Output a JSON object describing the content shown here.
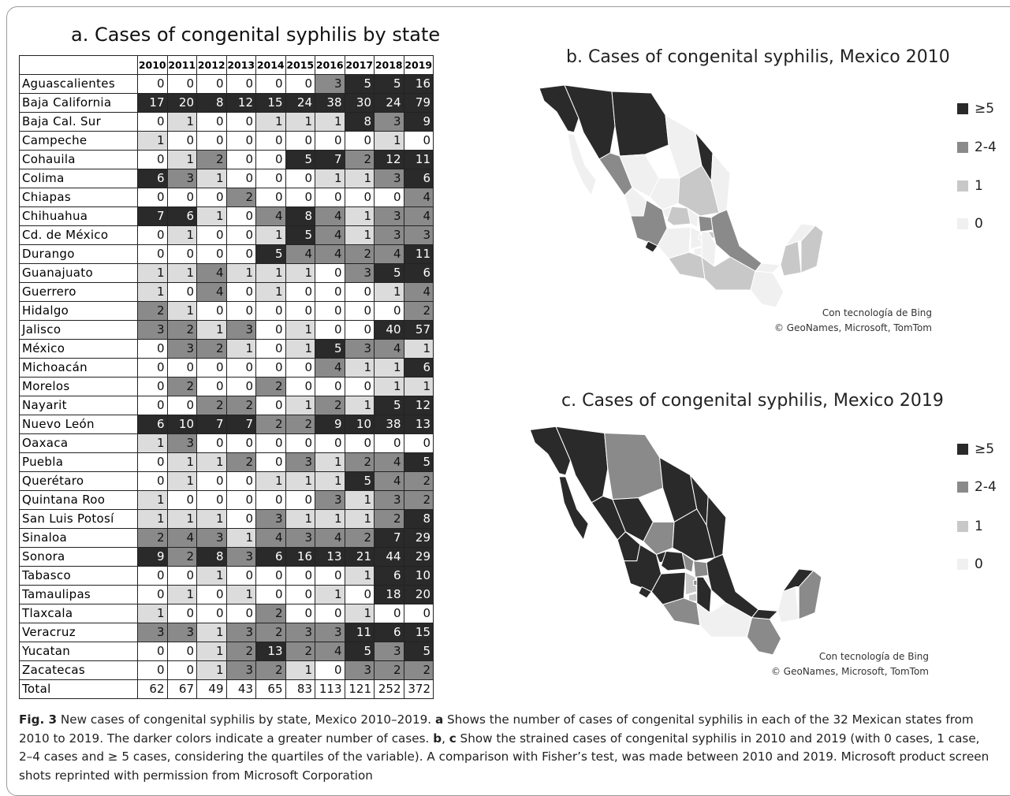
{
  "panel_a_title": "a. Cases of congenital syphilis by state",
  "panel_b_title": "b. Cases of congenital syphilis, Mexico 2010",
  "panel_c_title": "c. Cases of congenital syphilis, Mexico 2019",
  "legend": [
    "≥5",
    "2-4",
    "1",
    "0"
  ],
  "legend_colors": [
    "#2a2a2a",
    "#8a8a8a",
    "#c8c8c8",
    "#f0f0f0"
  ],
  "map_credit_b": [
    "Con tecnología de Bing",
    "© GeoNames, Microsoft, TomTom"
  ],
  "map_credit_c": [
    "Con tecnología de Bing",
    "© GeoNames, Microsoft, TomTom"
  ],
  "caption": {
    "fig_label": "Fig. 3",
    "t1": "  New cases of congenital syphilis by state, Mexico 2010–2019. ",
    "a": "a",
    "t2": " Shows the number of cases of congenital syphilis in each of the 32 Mexican states from 2010 to 2019. The darker colors indicate a greater number of cases. ",
    "b": "b",
    "sep": ", ",
    "c": "c",
    "t3": " Show the strained cases of congenital syphilis in 2010 and 2019 (with 0 cases, 1 case, 2–4 cases and ≥ 5 cases, considering the quartiles of the variable). A comparison with Fisher’s test, was made between 2010 and 2019. Microsoft product screen shots reprinted with permission from Microsoft Corporation"
  },
  "chart_data": {
    "type": "table",
    "title": "a. Cases of congenital syphilis by state",
    "columns": [
      "2010",
      "2011",
      "2012",
      "2013",
      "2014",
      "2015",
      "2016",
      "2017",
      "2018",
      "2019"
    ],
    "rows": [
      {
        "state": "Aguascalientes",
        "values": [
          0,
          0,
          0,
          0,
          0,
          0,
          3,
          5,
          5,
          16
        ]
      },
      {
        "state": "Baja California",
        "values": [
          17,
          20,
          8,
          12,
          15,
          24,
          38,
          30,
          24,
          79
        ]
      },
      {
        "state": "Baja Cal. Sur",
        "values": [
          0,
          1,
          0,
          0,
          1,
          1,
          1,
          8,
          3,
          9
        ]
      },
      {
        "state": "Campeche",
        "values": [
          1,
          0,
          0,
          0,
          0,
          0,
          0,
          0,
          1,
          0
        ]
      },
      {
        "state": "Cohauila",
        "values": [
          0,
          1,
          2,
          0,
          0,
          5,
          7,
          2,
          12,
          11
        ]
      },
      {
        "state": "Colima",
        "values": [
          6,
          3,
          1,
          0,
          0,
          0,
          1,
          1,
          3,
          6
        ]
      },
      {
        "state": "Chiapas",
        "values": [
          0,
          0,
          0,
          2,
          0,
          0,
          0,
          0,
          0,
          4
        ]
      },
      {
        "state": "Chihuahua",
        "values": [
          7,
          6,
          1,
          0,
          4,
          8,
          4,
          1,
          3,
          4
        ]
      },
      {
        "state": "Cd. de México",
        "values": [
          0,
          1,
          0,
          0,
          1,
          5,
          4,
          1,
          3,
          3
        ]
      },
      {
        "state": "Durango",
        "values": [
          0,
          0,
          0,
          0,
          5,
          4,
          4,
          2,
          4,
          11
        ]
      },
      {
        "state": "Guanajuato",
        "values": [
          1,
          1,
          4,
          1,
          1,
          1,
          0,
          3,
          5,
          6
        ]
      },
      {
        "state": "Guerrero",
        "values": [
          1,
          0,
          4,
          0,
          1,
          0,
          0,
          0,
          1,
          4
        ]
      },
      {
        "state": "Hidalgo",
        "values": [
          2,
          1,
          0,
          0,
          0,
          0,
          0,
          0,
          0,
          2
        ]
      },
      {
        "state": "Jalisco",
        "values": [
          3,
          2,
          1,
          3,
          0,
          1,
          0,
          0,
          40,
          57
        ]
      },
      {
        "state": "México",
        "values": [
          0,
          3,
          2,
          1,
          0,
          1,
          5,
          3,
          4,
          1
        ]
      },
      {
        "state": "Michoacán",
        "values": [
          0,
          0,
          0,
          0,
          0,
          0,
          4,
          1,
          1,
          6
        ]
      },
      {
        "state": "Morelos",
        "values": [
          0,
          2,
          0,
          0,
          2,
          0,
          0,
          0,
          1,
          1
        ]
      },
      {
        "state": "Nayarit",
        "values": [
          0,
          0,
          2,
          2,
          0,
          1,
          2,
          1,
          5,
          12
        ]
      },
      {
        "state": "Nuevo León",
        "values": [
          6,
          10,
          7,
          7,
          2,
          2,
          9,
          10,
          38,
          13
        ]
      },
      {
        "state": "Oaxaca",
        "values": [
          1,
          3,
          0,
          0,
          0,
          0,
          0,
          0,
          0,
          0
        ]
      },
      {
        "state": "Puebla",
        "values": [
          0,
          1,
          1,
          2,
          0,
          3,
          1,
          2,
          4,
          5
        ]
      },
      {
        "state": "Querétaro",
        "values": [
          0,
          1,
          0,
          0,
          1,
          1,
          1,
          5,
          4,
          2
        ]
      },
      {
        "state": "Quintana Roo",
        "values": [
          1,
          0,
          0,
          0,
          0,
          0,
          3,
          1,
          3,
          2
        ]
      },
      {
        "state": "San Luis Potosí",
        "values": [
          1,
          1,
          1,
          0,
          3,
          1,
          1,
          1,
          2,
          8
        ]
      },
      {
        "state": "Sinaloa",
        "values": [
          2,
          4,
          3,
          1,
          4,
          3,
          4,
          2,
          7,
          29
        ]
      },
      {
        "state": "Sonora",
        "values": [
          9,
          2,
          8,
          3,
          6,
          16,
          13,
          21,
          44,
          29
        ]
      },
      {
        "state": "Tabasco",
        "values": [
          0,
          0,
          1,
          0,
          0,
          0,
          0,
          1,
          6,
          10
        ]
      },
      {
        "state": "Tamaulipas",
        "values": [
          0,
          1,
          0,
          1,
          0,
          0,
          1,
          0,
          18,
          20
        ]
      },
      {
        "state": "Tlaxcala",
        "values": [
          1,
          0,
          0,
          0,
          2,
          0,
          0,
          1,
          0,
          0
        ]
      },
      {
        "state": "Veracruz",
        "values": [
          3,
          3,
          1,
          3,
          2,
          3,
          3,
          11,
          6,
          15
        ]
      },
      {
        "state": "Yucatan",
        "values": [
          0,
          0,
          1,
          2,
          13,
          2,
          4,
          5,
          3,
          5
        ]
      },
      {
        "state": "Zacatecas",
        "values": [
          0,
          0,
          1,
          3,
          2,
          1,
          0,
          3,
          2,
          2
        ]
      }
    ],
    "total": {
      "label": "Total",
      "values": [
        62,
        67,
        49,
        43,
        65,
        83,
        113,
        121,
        252,
        372
      ]
    }
  }
}
